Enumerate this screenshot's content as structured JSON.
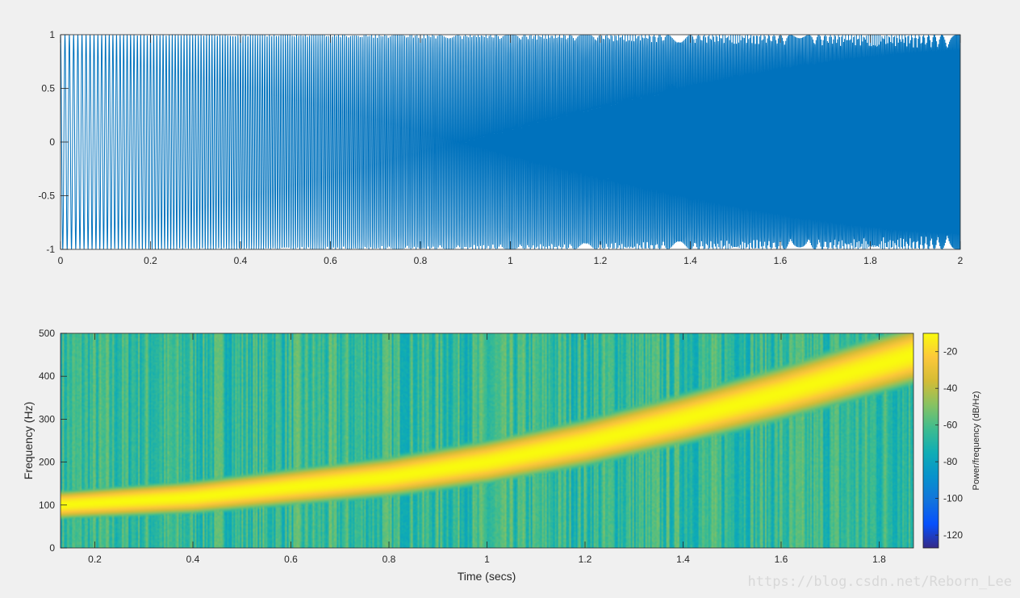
{
  "watermark": "https://blog.csdn.net/Reborn_Lee",
  "colors": {
    "figure_bg": "#f0f0f0",
    "line": "#0072bd",
    "axes_bg": "#ffffff"
  },
  "chart_data": [
    {
      "type": "line",
      "signal": "chirp",
      "x": {
        "lim": [
          0,
          2
        ],
        "ticks": [
          0,
          0.2,
          0.4,
          0.6,
          0.8,
          1,
          1.2,
          1.4,
          1.6,
          1.8,
          2
        ],
        "tick_labels": [
          "0",
          "0.2",
          "0.4",
          "0.6",
          "0.8",
          "1",
          "1.2",
          "1.4",
          "1.6",
          "1.8",
          "2"
        ]
      },
      "y": {
        "lim": [
          -1,
          1
        ],
        "ticks": [
          -1,
          -0.5,
          0,
          0.5,
          1
        ],
        "tick_labels": [
          "-1",
          "-0.5",
          "0",
          "0.5",
          "1"
        ]
      },
      "series": [
        {
          "color": "#0072bd",
          "freq_start_hz": 100,
          "freq_end_hz": 500,
          "duration_s": 2
        }
      ],
      "title": "",
      "xlabel": "",
      "ylabel": ""
    },
    {
      "type": "heatmap",
      "xlabel": "Time (secs)",
      "ylabel": "Frequency (Hz)",
      "x": {
        "lim": [
          0.13,
          1.87
        ],
        "ticks": [
          0.2,
          0.4,
          0.6,
          0.8,
          1,
          1.2,
          1.4,
          1.6,
          1.8
        ],
        "tick_labels": [
          "0.2",
          "0.4",
          "0.6",
          "0.8",
          "1",
          "1.2",
          "1.4",
          "1.6",
          "1.8"
        ]
      },
      "y": {
        "lim": [
          0,
          500
        ],
        "ticks": [
          0,
          100,
          200,
          300,
          400,
          500
        ],
        "tick_labels": [
          "0",
          "100",
          "200",
          "300",
          "400",
          "500"
        ]
      },
      "ridge": {
        "points": [
          [
            0.13,
            100
          ],
          [
            0.4,
            118
          ],
          [
            0.8,
            165
          ],
          [
            1.0,
            200
          ],
          [
            1.2,
            245
          ],
          [
            1.4,
            300
          ],
          [
            1.6,
            360
          ],
          [
            1.87,
            450
          ]
        ],
        "peak_db": -10
      },
      "background_db": -65,
      "colorbar": {
        "label": "Power/frequency (dB/Hz)",
        "lim": [
          -127,
          -10
        ],
        "ticks": [
          -20,
          -40,
          -60,
          -80,
          -100,
          -120
        ],
        "tick_labels": [
          "-20",
          "-40",
          "-60",
          "-80",
          "-100",
          "-120"
        ],
        "colormap": "parula"
      }
    }
  ]
}
